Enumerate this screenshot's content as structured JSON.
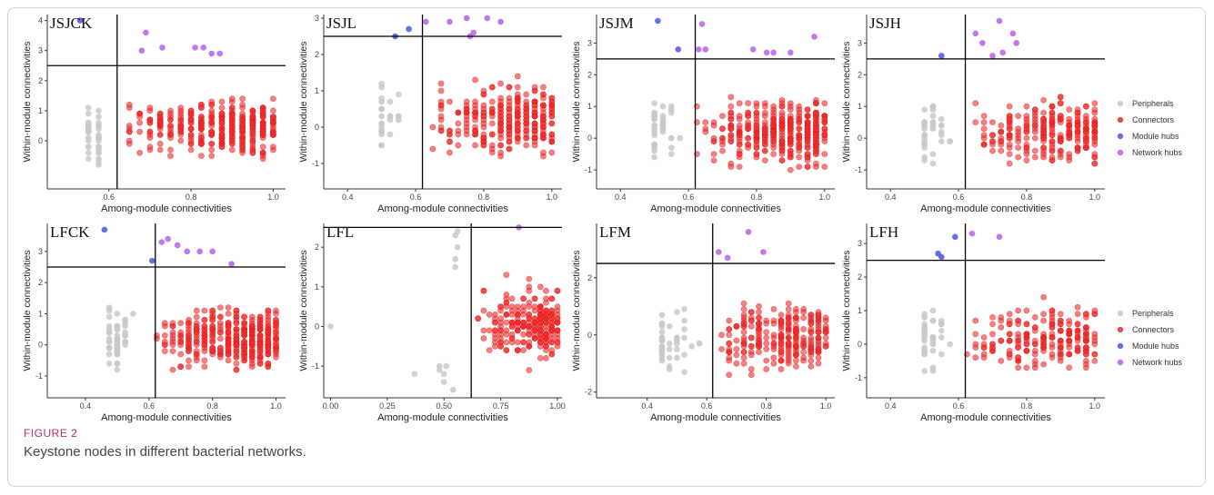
{
  "figure": {
    "label": "FIGURE 2",
    "caption": "Keystone nodes in different bacterial networks."
  },
  "colors": {
    "Peripherals": "#c9c9c9",
    "Connectors": "#ef2b2b",
    "Module hubs": "#4a55e0",
    "Network hubs": "#b560e6"
  },
  "chart_data": [
    {
      "type": "scatter",
      "panel": "JSJCK",
      "xlabel": "Among-module connectivities",
      "ylabel": "Within-module connectivities",
      "xlim": [
        0.45,
        1.03
      ],
      "ylim": [
        -1.6,
        4.2
      ],
      "xticks": [
        0.6,
        0.8,
        1.0
      ],
      "yticks": [
        0,
        1,
        2,
        3,
        4
      ],
      "thresholds": {
        "x": 0.62,
        "y": 2.5
      },
      "series": [
        {
          "name": "Module hubs",
          "points": [
            [
              0.53,
              4.0
            ]
          ]
        },
        {
          "name": "Network hubs",
          "points": [
            [
              0.69,
              3.6
            ],
            [
              0.68,
              3.0
            ],
            [
              0.73,
              3.1
            ],
            [
              0.81,
              3.1
            ],
            [
              0.83,
              3.1
            ],
            [
              0.85,
              2.9
            ],
            [
              0.87,
              2.9
            ]
          ]
        },
        {
          "name": "Peripherals",
          "count": 40,
          "xrange": [
            0.47,
            0.6
          ],
          "yrange": [
            -1.4,
            2.2
          ]
        },
        {
          "name": "Connectors",
          "count": 360,
          "xrange": [
            0.62,
            1.0
          ],
          "yrange": [
            -1.0,
            2.5
          ]
        }
      ]
    },
    {
      "type": "scatter",
      "panel": "JSJL",
      "xlabel": "Among-module connectivities",
      "ylabel": "Within-module connectivities",
      "xlim": [
        0.33,
        1.03
      ],
      "ylim": [
        -1.7,
        3.1
      ],
      "xticks": [
        0.4,
        0.6,
        0.8,
        1.0
      ],
      "yticks": [
        -1,
        0,
        1,
        2,
        3
      ],
      "thresholds": {
        "x": 0.62,
        "y": 2.5
      },
      "series": [
        {
          "name": "Module hubs",
          "points": [
            [
              0.54,
              2.5
            ],
            [
              0.58,
              2.7
            ]
          ]
        },
        {
          "name": "Network hubs",
          "points": [
            [
              0.63,
              2.9
            ],
            [
              0.7,
              2.9
            ],
            [
              0.75,
              3.0
            ],
            [
              0.77,
              2.6
            ],
            [
              0.81,
              3.0
            ],
            [
              0.85,
              2.9
            ],
            [
              0.76,
              2.5
            ]
          ]
        },
        {
          "name": "Peripherals",
          "count": 25,
          "xrange": [
            0.35,
            0.6
          ],
          "yrange": [
            -1.2,
            2.3
          ]
        },
        {
          "name": "Connectors",
          "count": 300,
          "xrange": [
            0.62,
            1.0
          ],
          "yrange": [
            -1.4,
            2.4
          ]
        }
      ]
    },
    {
      "type": "scatter",
      "panel": "JSJM",
      "xlabel": "Among-module connectivities",
      "ylabel": "Within-module connectivities",
      "xlim": [
        0.33,
        1.03
      ],
      "ylim": [
        -1.6,
        3.9
      ],
      "xticks": [
        0.4,
        0.6,
        0.8,
        1.0
      ],
      "yticks": [
        -1,
        0,
        1,
        2,
        3
      ],
      "thresholds": {
        "x": 0.62,
        "y": 2.5
      },
      "series": [
        {
          "name": "Module hubs",
          "points": [
            [
              0.51,
              3.7
            ],
            [
              0.57,
              2.8
            ]
          ]
        },
        {
          "name": "Network hubs",
          "points": [
            [
              0.64,
              3.6
            ],
            [
              0.63,
              2.8
            ],
            [
              0.65,
              2.8
            ],
            [
              0.79,
              2.8
            ],
            [
              0.83,
              2.7
            ],
            [
              0.85,
              2.7
            ],
            [
              0.97,
              3.2
            ],
            [
              0.9,
              2.7
            ]
          ]
        },
        {
          "name": "Peripherals",
          "count": 40,
          "xrange": [
            0.35,
            0.6
          ],
          "yrange": [
            -1.3,
            2.3
          ]
        },
        {
          "name": "Connectors",
          "count": 380,
          "xrange": [
            0.62,
            1.0
          ],
          "yrange": [
            -1.4,
            2.4
          ]
        }
      ]
    },
    {
      "type": "scatter",
      "panel": "JSJH",
      "xlabel": "Among-module connectivities",
      "ylabel": "Within-module connectivities",
      "xlim": [
        0.33,
        1.03
      ],
      "ylim": [
        -1.6,
        3.9
      ],
      "xticks": [
        0.4,
        0.6,
        0.8,
        1.0
      ],
      "yticks": [
        -1,
        0,
        1,
        2,
        3
      ],
      "thresholds": {
        "x": 0.62,
        "y": 2.5
      },
      "series": [
        {
          "name": "Module hubs",
          "points": [
            [
              0.55,
              2.6
            ]
          ]
        },
        {
          "name": "Network hubs",
          "points": [
            [
              0.65,
              3.3
            ],
            [
              0.67,
              3.0
            ],
            [
              0.72,
              3.7
            ],
            [
              0.76,
              3.3
            ],
            [
              0.77,
              3.0
            ],
            [
              0.73,
              2.7
            ],
            [
              0.7,
              2.6
            ]
          ]
        },
        {
          "name": "Peripherals",
          "count": 35,
          "xrange": [
            0.35,
            0.6
          ],
          "yrange": [
            -1.3,
            2.5
          ]
        },
        {
          "name": "Connectors",
          "count": 260,
          "xrange": [
            0.62,
            1.0
          ],
          "yrange": [
            -1.4,
            2.4
          ]
        }
      ]
    },
    {
      "type": "scatter",
      "panel": "LFCK",
      "xlabel": "Among-module connectivities",
      "ylabel": "Within-module connectivities",
      "xlim": [
        0.28,
        1.03
      ],
      "ylim": [
        -1.7,
        3.9
      ],
      "xticks": [
        0.4,
        0.6,
        0.8,
        1.0
      ],
      "yticks": [
        -1,
        0,
        1,
        2,
        3
      ],
      "thresholds": {
        "x": 0.62,
        "y": 2.5
      },
      "series": [
        {
          "name": "Module hubs",
          "points": [
            [
              0.46,
              3.7
            ],
            [
              0.61,
              2.7
            ]
          ]
        },
        {
          "name": "Network hubs",
          "points": [
            [
              0.64,
              3.3
            ],
            [
              0.66,
              3.4
            ],
            [
              0.69,
              3.2
            ],
            [
              0.72,
              3.0
            ],
            [
              0.76,
              3.0
            ],
            [
              0.8,
              3.0
            ],
            [
              0.86,
              2.6
            ]
          ]
        },
        {
          "name": "Peripherals",
          "count": 55,
          "xrange": [
            0.3,
            0.6
          ],
          "yrange": [
            -1.3,
            2.2
          ]
        },
        {
          "name": "Connectors",
          "count": 420,
          "xrange": [
            0.62,
            1.0
          ],
          "yrange": [
            -1.3,
            2.3
          ]
        }
      ]
    },
    {
      "type": "scatter",
      "panel": "LFL",
      "xlabel": "Among-module connectivities",
      "ylabel": "Within-module connectivities",
      "xlim": [
        -0.03,
        1.02
      ],
      "ylim": [
        -1.8,
        2.6
      ],
      "xticks": [
        0.0,
        0.25,
        0.5,
        0.75,
        1.0
      ],
      "xticklabels": [
        "0.00",
        "0.25",
        "0.50",
        "0.75",
        "1.00"
      ],
      "yticks": [
        -1,
        0,
        1,
        2
      ],
      "thresholds": {
        "x": 0.62,
        "y": 2.5
      },
      "series": [
        {
          "name": "Network hubs",
          "points": [
            [
              0.83,
              2.5
            ]
          ]
        },
        {
          "name": "Peripherals",
          "points": [
            [
              0.0,
              0.0
            ],
            [
              0.37,
              -1.2
            ],
            [
              0.48,
              -1.0
            ],
            [
              0.5,
              -1.2
            ],
            [
              0.5,
              -1.4
            ],
            [
              0.51,
              -1.0
            ],
            [
              0.55,
              1.5
            ],
            [
              0.55,
              1.7
            ],
            [
              0.56,
              2.0
            ],
            [
              0.55,
              2.3
            ],
            [
              0.56,
              2.4
            ],
            [
              0.54,
              -1.6
            ],
            [
              0.48,
              -1.1
            ]
          ]
        },
        {
          "name": "Connectors",
          "count": 250,
          "xrange": [
            0.65,
            1.0
          ],
          "yrange": [
            -1.5,
            2.3
          ]
        }
      ]
    },
    {
      "type": "scatter",
      "panel": "LFM",
      "xlabel": "Among-module connectivities",
      "ylabel": "Within-module connectivities",
      "xlim": [
        0.23,
        1.03
      ],
      "ylim": [
        -2.2,
        3.9
      ],
      "xticks": [
        0.4,
        0.6,
        0.8,
        1.0
      ],
      "yticks": [
        -2,
        0,
        2
      ],
      "thresholds": {
        "x": 0.62,
        "y": 2.5
      },
      "series": [
        {
          "name": "Network hubs",
          "points": [
            [
              0.64,
              2.9
            ],
            [
              0.67,
              2.7
            ],
            [
              0.74,
              3.6
            ],
            [
              0.79,
              2.9
            ]
          ]
        },
        {
          "name": "Peripherals",
          "count": 40,
          "xrange": [
            0.25,
            0.6
          ],
          "yrange": [
            -1.9,
            2.2
          ]
        },
        {
          "name": "Connectors",
          "count": 260,
          "xrange": [
            0.62,
            1.0
          ],
          "yrange": [
            -1.9,
            2.4
          ]
        }
      ]
    },
    {
      "type": "scatter",
      "panel": "LFH",
      "xlabel": "Among-module connectivities",
      "ylabel": "Within-module connectivities",
      "xlim": [
        0.33,
        1.03
      ],
      "ylim": [
        -1.6,
        3.6
      ],
      "xticks": [
        0.4,
        0.6,
        0.8,
        1.0
      ],
      "yticks": [
        -1,
        0,
        1,
        2,
        3
      ],
      "thresholds": {
        "x": 0.62,
        "y": 2.5
      },
      "series": [
        {
          "name": "Module hubs",
          "points": [
            [
              0.54,
              2.7
            ],
            [
              0.55,
              2.6
            ],
            [
              0.59,
              3.2
            ]
          ]
        },
        {
          "name": "Network hubs",
          "points": [
            [
              0.64,
              3.3
            ],
            [
              0.72,
              3.2
            ]
          ]
        },
        {
          "name": "Peripherals",
          "count": 40,
          "xrange": [
            0.35,
            0.6
          ],
          "yrange": [
            -1.5,
            2.3
          ]
        },
        {
          "name": "Connectors",
          "count": 220,
          "xrange": [
            0.62,
            1.0
          ],
          "yrange": [
            -1.4,
            2.3
          ]
        }
      ]
    }
  ],
  "legends": [
    {
      "entries": [
        "Peripherals",
        "Connectors",
        "Module hubs",
        "Network hubs"
      ]
    },
    {
      "entries": [
        "Peripherals",
        "Connectors",
        "Module hubs",
        "Network hubs"
      ]
    }
  ]
}
